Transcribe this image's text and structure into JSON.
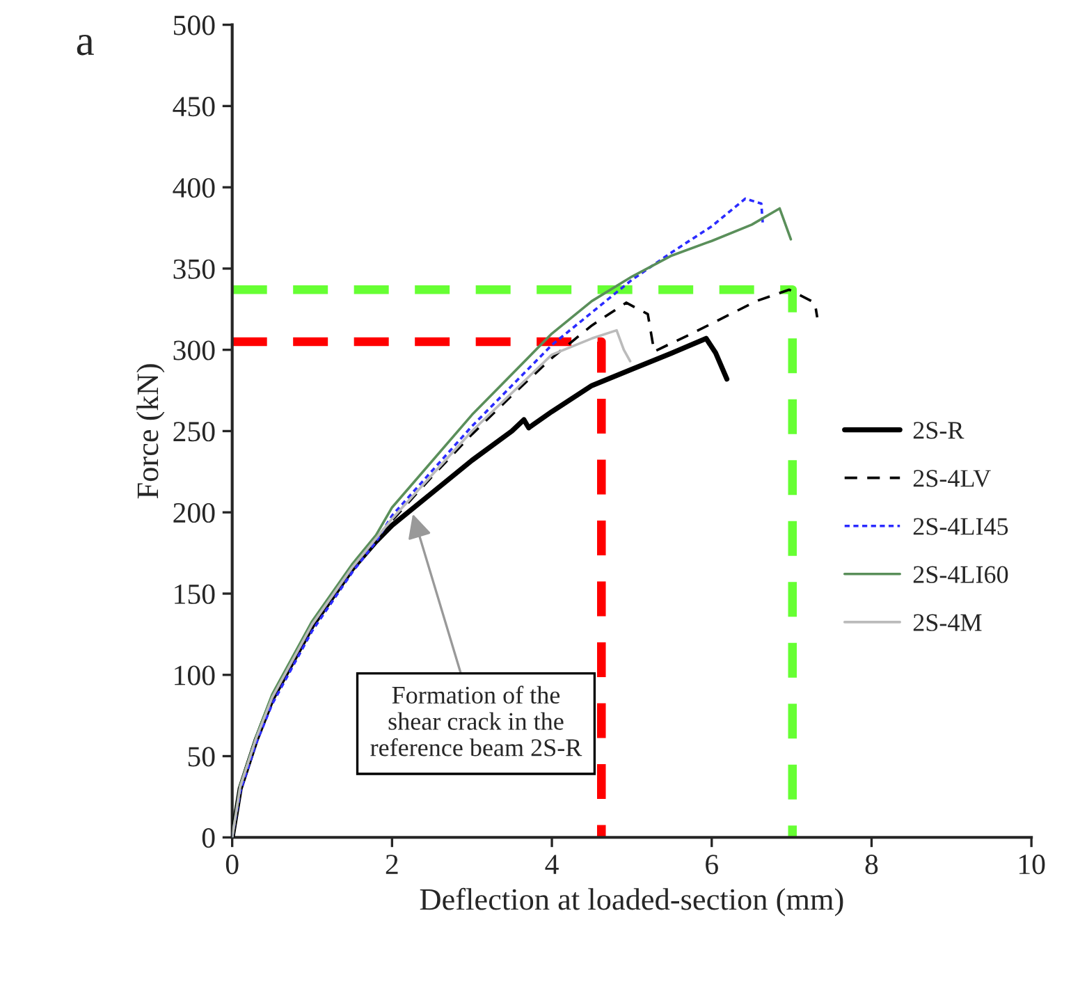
{
  "chart_data": {
    "type": "line",
    "xlabel": "Deflection at loaded-section (mm)",
    "ylabel": "Force (kN)",
    "xlim": [
      0,
      10
    ],
    "ylim": [
      0,
      500
    ],
    "xticks": [
      0,
      2,
      4,
      6,
      8,
      10
    ],
    "yticks": [
      0,
      50,
      100,
      150,
      200,
      250,
      300,
      350,
      400,
      450,
      500
    ],
    "grid": false,
    "legend": "right",
    "annotations": [
      "a",
      {
        "text": "Formation of the\nshear crack in the\nreference beam 2S-R",
        "x": 2.26,
        "y": 199
      }
    ],
    "series": [
      {
        "name": "2S-R",
        "color": "#000000",
        "line_style": "solid",
        "x": [
          0,
          0.1,
          0.3,
          0.5,
          1,
          1.5,
          1.8,
          2,
          2.5,
          3,
          3.5,
          3.65,
          3.71,
          4,
          4.5,
          5,
          5.5,
          5.93,
          6.05,
          6.19
        ],
        "values": [
          0,
          30,
          60,
          85,
          130,
          165,
          182,
          192,
          212,
          232,
          250,
          257,
          252,
          262,
          278,
          288,
          298,
          307,
          298,
          282
        ]
      },
      {
        "name": "2S-4LV",
        "color": "#000000",
        "line_style": "dashed",
        "x": [
          0,
          0.1,
          0.3,
          0.5,
          1,
          1.5,
          1.8,
          2,
          2.5,
          3,
          3.5,
          4,
          4.5,
          4.93,
          5.2,
          5.28,
          5.75,
          6.56,
          6.97,
          7.29,
          7.32
        ],
        "values": [
          0,
          32,
          62,
          87,
          131,
          166,
          183,
          195,
          222,
          248,
          272,
          295,
          315,
          329,
          322,
          299,
          310,
          330,
          337,
          329,
          320
        ]
      },
      {
        "name": "2S-4LI45",
        "color": "#2b2bff",
        "line_style": "dotted",
        "x": [
          0,
          0.1,
          0.3,
          0.5,
          1,
          1.5,
          1.8,
          2,
          3,
          4,
          4.5,
          5,
          5.5,
          6,
          6.42,
          6.62,
          6.64
        ],
        "values": [
          0,
          28,
          58,
          82,
          127,
          163,
          182,
          198,
          253,
          303,
          323,
          343,
          360,
          376,
          393,
          390,
          377
        ]
      },
      {
        "name": "2S-4LI60",
        "color": "#5a8f5a",
        "line_style": "solid",
        "x": [
          0,
          0.1,
          0.3,
          0.5,
          1,
          1.5,
          1.8,
          2,
          3,
          4,
          4.5,
          5,
          5.5,
          6,
          6.5,
          6.85,
          6.99
        ],
        "values": [
          0,
          32,
          62,
          88,
          133,
          168,
          186,
          203,
          260,
          310,
          330,
          345,
          358,
          367,
          377,
          387,
          368
        ]
      },
      {
        "name": "2S-4M",
        "color": "#bbbbbb",
        "line_style": "solid",
        "x": [
          0,
          0.1,
          0.3,
          0.5,
          1,
          1.5,
          1.8,
          2,
          3,
          4,
          4.5,
          4.81,
          4.9,
          4.98
        ],
        "values": [
          0,
          31,
          61,
          86,
          131,
          166,
          184,
          196,
          250,
          297,
          307,
          312,
          300,
          293
        ]
      },
      {
        "color": "#ff0000",
        "line_style": "dashed",
        "x": [
          0,
          4.62,
          4.62
        ],
        "values": [
          305,
          305,
          0
        ]
      },
      {
        "color": "#66ff33",
        "line_style": "dashed",
        "x": [
          0,
          7.01,
          7.01
        ],
        "values": [
          337,
          337,
          0
        ]
      }
    ]
  }
}
